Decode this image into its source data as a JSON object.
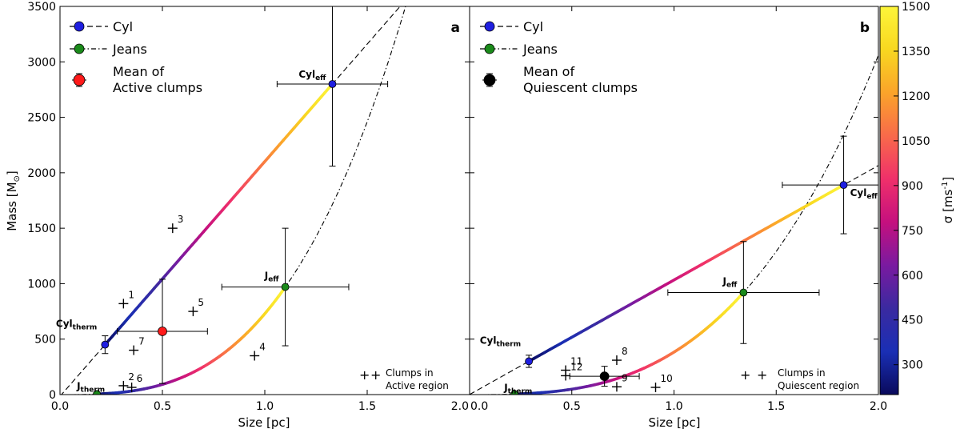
{
  "chart_data": [
    {
      "panel": "a",
      "type": "scatter",
      "xlabel": "Size [pc]",
      "ylabel": "Mass [M",
      "ylabel_sub": "⊙",
      "ylabel_end": "]",
      "xlim": [
        0.0,
        2.0
      ],
      "ylim": [
        0,
        3500
      ],
      "xticks": [
        "0.0",
        "0.5",
        "1.0",
        "1.5",
        "2.0"
      ],
      "yticks": [
        "0",
        "500",
        "1000",
        "1500",
        "2000",
        "2500",
        "3000",
        "3500"
      ],
      "legend": {
        "cyl": "Cyl",
        "jeans": "Jeans",
        "mean_line1": "Mean of",
        "mean_line2": "Active clumps",
        "clumps_line1": "Clumps in",
        "clumps_line2": "Active region"
      },
      "cyl_curve": {
        "x0": 0.22,
        "x1": 1.33,
        "m0": 450,
        "m1": 2800
      },
      "jeans_curve": {
        "x0": 0.18,
        "x1": 1.1,
        "m0": 5,
        "m1": 970
      },
      "points": [
        {
          "key": "cyl_therm",
          "main": "Cyl",
          "sub": "therm",
          "x": 0.22,
          "y": 450,
          "color": "#1f1fe0",
          "xerr": 0.0,
          "yerr": 80
        },
        {
          "key": "cyl_eff",
          "main": "Cyl",
          "sub": "eff",
          "x": 1.33,
          "y": 2800,
          "color": "#1f1fe0",
          "xerr": 0.27,
          "yerr": 740
        },
        {
          "key": "j_therm",
          "main": "J",
          "sub": "therm",
          "x": 0.18,
          "y": 5,
          "color": "#1a8a1a",
          "xerr": 0.0,
          "yerr": 0
        },
        {
          "key": "j_eff",
          "main": "J",
          "sub": "eff",
          "x": 1.1,
          "y": 970,
          "color": "#1a8a1a",
          "xerr": 0.31,
          "yerr": 530
        },
        {
          "key": "mean",
          "main": "",
          "sub": "",
          "x": 0.5,
          "y": 570,
          "color": "#ff1a1a",
          "xerr": 0.22,
          "yerr": 470
        }
      ],
      "clumps": [
        {
          "label": "1",
          "x": 0.31,
          "y": 820
        },
        {
          "label": "2",
          "x": 0.31,
          "y": 80
        },
        {
          "label": "3",
          "x": 0.55,
          "y": 1500
        },
        {
          "label": "4",
          "x": 0.95,
          "y": 350
        },
        {
          "label": "5",
          "x": 0.65,
          "y": 750
        },
        {
          "label": "6",
          "x": 0.35,
          "y": 65
        },
        {
          "label": "7",
          "x": 0.36,
          "y": 400
        }
      ]
    },
    {
      "panel": "b",
      "type": "scatter",
      "xlabel": "Size [pc]",
      "xlim": [
        0.0,
        2.0
      ],
      "ylim": [
        0,
        3500
      ],
      "xticks": [
        "0.0",
        "0.5",
        "1.0",
        "1.5",
        "2.0"
      ],
      "legend": {
        "cyl": "Cyl",
        "jeans": "Jeans",
        "mean_line1": "Mean of",
        "mean_line2": "Quiescent clumps",
        "clumps_line1": "Clumps in",
        "clumps_line2": "Quiescent region"
      },
      "cyl_curve": {
        "x0": 0.29,
        "x1": 1.83,
        "m0": 300,
        "m1": 1890
      },
      "jeans_curve": {
        "x0": 0.22,
        "x1": 1.34,
        "m0": 5,
        "m1": 920
      },
      "points": [
        {
          "key": "cyl_therm",
          "main": "Cyl",
          "sub": "therm",
          "x": 0.29,
          "y": 300,
          "color": "#1f1fe0",
          "xerr": 0.0,
          "yerr": 55
        },
        {
          "key": "cyl_eff",
          "main": "Cyl",
          "sub": "eff",
          "x": 1.83,
          "y": 1890,
          "color": "#1f1fe0",
          "xerr": 0.3,
          "yerr": 440
        },
        {
          "key": "j_therm",
          "main": "J",
          "sub": "therm",
          "x": 0.22,
          "y": 5,
          "color": "#1a8a1a",
          "xerr": 0.0,
          "yerr": 0
        },
        {
          "key": "j_eff",
          "main": "J",
          "sub": "eff",
          "x": 1.34,
          "y": 920,
          "color": "#1a8a1a",
          "xerr": 0.37,
          "yerr": 460
        },
        {
          "key": "mean",
          "main": "",
          "sub": "",
          "x": 0.66,
          "y": 165,
          "color": "#000000",
          "xerr": 0.17,
          "yerr": 90
        }
      ],
      "clumps": [
        {
          "label": "8",
          "x": 0.72,
          "y": 310
        },
        {
          "label": "9",
          "x": 0.72,
          "y": 70
        },
        {
          "label": "10",
          "x": 0.91,
          "y": 65
        },
        {
          "label": "11",
          "x": 0.47,
          "y": 220
        },
        {
          "label": "12",
          "x": 0.47,
          "y": 170
        }
      ]
    }
  ],
  "colorbar": {
    "label": "σ [ms",
    "label_sup": "-1",
    "label_end": "]",
    "min": 200,
    "max": 1500,
    "ticks": [
      "300",
      "450",
      "600",
      "750",
      "900",
      "1050",
      "1200",
      "1350",
      "1500"
    ],
    "colors": [
      "#0a0a5c",
      "#1a2fb5",
      "#3a2aa0",
      "#7a1aa0",
      "#c5107e",
      "#f0306a",
      "#f86a4a",
      "#fba42a",
      "#f8d820",
      "#fdf53a"
    ]
  }
}
